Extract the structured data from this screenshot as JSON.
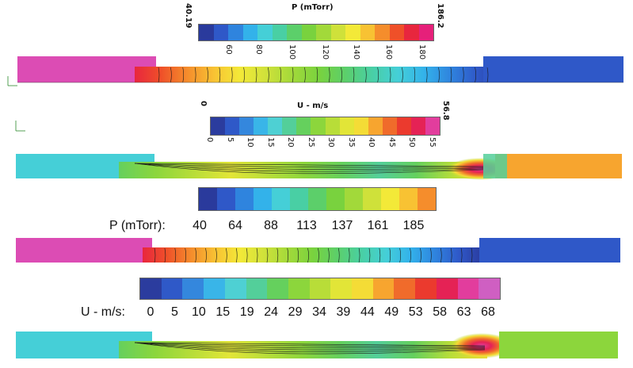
{
  "colors": {
    "pressure": [
      "#2a3a9c",
      "#2f58c8",
      "#2f84de",
      "#33b2ea",
      "#45cfd7",
      "#49cfa4",
      "#5ccf6a",
      "#79d23e",
      "#a2d93a",
      "#cfe13a",
      "#f3e938",
      "#f8c233",
      "#f58d2c",
      "#ef5029",
      "#e8263e",
      "#e6207a",
      "#dc4cb4",
      "#c95ec2"
    ],
    "velocity": [
      "#2b3c9e",
      "#2f59c8",
      "#3487dd",
      "#39b5e8",
      "#4ed0d3",
      "#53cf9a",
      "#65d05d",
      "#8cd63c",
      "#b8dd38",
      "#e2e537",
      "#f4dc36",
      "#f7a52f",
      "#f06b2b",
      "#eb3a2e",
      "#e52255",
      "#e23d9d",
      "#cf5fc2"
    ]
  },
  "panel1": {
    "title": "P (mTorr)",
    "min_label": "40.19",
    "max_label": "186.2",
    "ticks": [
      "60",
      "80",
      "100",
      "120",
      "140",
      "160",
      "180"
    ]
  },
  "panel2": {
    "title": "U - m/s",
    "min_label": "0",
    "max_label": "56.8",
    "ticks": [
      "0",
      "5",
      "10",
      "15",
      "20",
      "25",
      "30",
      "35",
      "40",
      "45",
      "50",
      "55"
    ]
  },
  "panel3": {
    "label": "P (mTorr):",
    "ticks": [
      "40",
      "64",
      "88",
      "113",
      "137",
      "161",
      "185"
    ]
  },
  "panel4": {
    "label": "U - m/s:",
    "ticks": [
      "0",
      "5",
      "10",
      "15",
      "19",
      "24",
      "29",
      "34",
      "39",
      "44",
      "49",
      "53",
      "58",
      "63",
      "68"
    ]
  }
}
